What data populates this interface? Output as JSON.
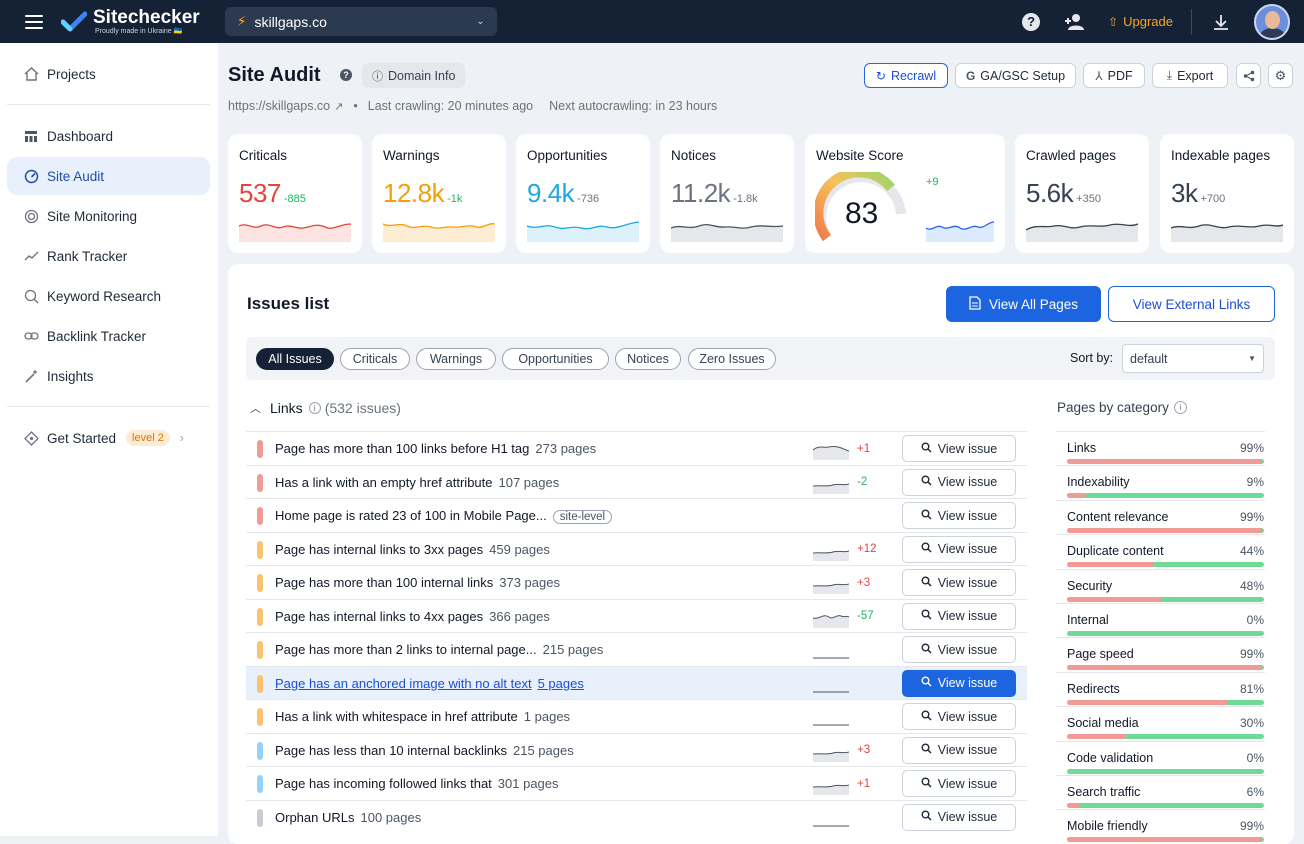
{
  "topbar": {
    "brand": "Sitechecker",
    "brand_sub": "Proudly made in Ukraine 🇺🇦",
    "project": "skillgaps.co",
    "upgrade": "Upgrade"
  },
  "sidebar": {
    "items": [
      {
        "label": "Projects",
        "icon": "home-icon"
      },
      {
        "label": "Dashboard",
        "icon": "dashboard-icon"
      },
      {
        "label": "Site Audit",
        "icon": "gauge-icon"
      },
      {
        "label": "Site Monitoring",
        "icon": "radar-icon"
      },
      {
        "label": "Rank Tracker",
        "icon": "trend-icon"
      },
      {
        "label": "Keyword Research",
        "icon": "keyword-search-icon"
      },
      {
        "label": "Backlink Tracker",
        "icon": "link-icon"
      },
      {
        "label": "Insights",
        "icon": "magic-wand-icon"
      },
      {
        "label": "Get Started",
        "icon": "diamond-icon"
      }
    ],
    "level": "level 2"
  },
  "header": {
    "title": "Site Audit",
    "domain_info": "Domain Info",
    "url": "https://skillgaps.co",
    "last_crawl": "Last crawling: 20 minutes ago",
    "next_crawl": "Next autocrawling: in 23 hours",
    "buttons": {
      "recrawl": "Recrawl",
      "ga": "GA/GSC Setup",
      "pdf": "PDF",
      "export": "Export"
    }
  },
  "stats": [
    {
      "title": "Criticals",
      "value": "537",
      "delta": "-885",
      "color": "#e2453c",
      "delta_color": "#22b35e"
    },
    {
      "title": "Warnings",
      "value": "12.8k",
      "delta": "-1k",
      "color": "#f59e0b",
      "delta_color": "#22b35e"
    },
    {
      "title": "Opportunities",
      "value": "9.4k",
      "delta": "-736",
      "color": "#1ea7e1",
      "delta_color": "#6b7280"
    },
    {
      "title": "Notices",
      "value": "11.2k",
      "delta": "-1.8k",
      "color": "#6b7280",
      "delta_color": "#6b7280"
    },
    {
      "title": "Website Score",
      "value": "83",
      "delta": "+9",
      "color": "#111827",
      "delta_color": "#22b35e"
    },
    {
      "title": "Crawled pages",
      "value": "5.6k",
      "delta": "+350",
      "color": "#374151",
      "delta_color": "#6b7280"
    },
    {
      "title": "Indexable pages",
      "value": "3k",
      "delta": "+700",
      "color": "#374151",
      "delta_color": "#6b7280"
    }
  ],
  "issues": {
    "title": "Issues list",
    "view_all": "View All Pages",
    "view_external": "View External Links",
    "filters": [
      "All Issues",
      "Criticals",
      "Warnings",
      "Opportunities",
      "Notices",
      "Zero Issues"
    ],
    "sort_label": "Sort by:",
    "sort_value": "default",
    "group": {
      "name": "Links",
      "count": "(532 issues)"
    },
    "view_label": "View issue",
    "rows": [
      {
        "name": "Page has more than 100 links before H1 tag",
        "pages": "273 pages",
        "delta": "+1",
        "sev": "#f29b96",
        "trend": "up"
      },
      {
        "name": "Has a link with an empty href attribute",
        "pages": "107 pages",
        "delta": "-2",
        "sev": "#f29b96",
        "trend": "flat"
      },
      {
        "name": "Home page is rated 23 of 100 in Mobile Page...",
        "pages": "",
        "tag": "site-level",
        "delta": "",
        "sev": "#f29b96",
        "trend": "none"
      },
      {
        "name": "Page has internal links to 3xx pages",
        "pages": "459 pages",
        "delta": "+12",
        "sev": "#fcc36e",
        "trend": "flat"
      },
      {
        "name": "Page has more than 100 internal links",
        "pages": "373 pages",
        "delta": "+3",
        "sev": "#fcc36e",
        "trend": "flat"
      },
      {
        "name": "Page has internal links to 4xx pages",
        "pages": "366 pages",
        "delta": "-57",
        "sev": "#fcc36e",
        "trend": "wave"
      },
      {
        "name": "Page has more than 2 links to internal page...",
        "pages": "215 pages",
        "delta": "",
        "sev": "#fcc36e",
        "trend": "line"
      },
      {
        "name": "Page has an anchored image with no alt text",
        "pages": "5 pages",
        "delta": "",
        "sev": "#fcc36e",
        "trend": "line"
      },
      {
        "name": "Has a link with whitespace in href attribute",
        "pages": "1 pages",
        "delta": "",
        "sev": "#fcc36e",
        "trend": "line"
      },
      {
        "name": "Page has less than 10 internal backlinks",
        "pages": "215 pages",
        "delta": "+3",
        "sev": "#93d3f5",
        "trend": "flat"
      },
      {
        "name": "Page has incoming followed links that",
        "pages": "301 pages",
        "delta": "+1",
        "sev": "#93d3f5",
        "trend": "flat"
      },
      {
        "name": "Orphan URLs",
        "pages": "100 pages",
        "delta": "",
        "sev": "#c9cdd3",
        "trend": "line"
      }
    ]
  },
  "categories": {
    "title": "Pages by category",
    "items": [
      {
        "name": "Links",
        "pct": "99%",
        "bad": 0.99
      },
      {
        "name": "Indexability",
        "pct": "9%",
        "bad": 0.09
      },
      {
        "name": "Content relevance",
        "pct": "99%",
        "bad": 0.99
      },
      {
        "name": "Duplicate content",
        "pct": "44%",
        "bad": 0.44
      },
      {
        "name": "Security",
        "pct": "48%",
        "bad": 0.48
      },
      {
        "name": "Internal",
        "pct": "0%",
        "bad": 0
      },
      {
        "name": "Page speed",
        "pct": "99%",
        "bad": 0.99
      },
      {
        "name": "Redirects",
        "pct": "81%",
        "bad": 0.81
      },
      {
        "name": "Social media",
        "pct": "30%",
        "bad": 0.3
      },
      {
        "name": "Code validation",
        "pct": "0%",
        "bad": 0
      },
      {
        "name": "Search traffic",
        "pct": "6%",
        "bad": 0.06
      },
      {
        "name": "Mobile friendly",
        "pct": "99%",
        "bad": 0.99
      }
    ]
  }
}
